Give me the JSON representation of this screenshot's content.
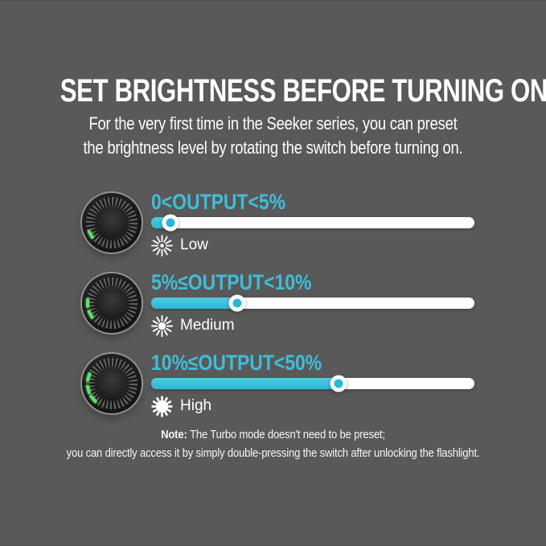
{
  "page": {
    "background_color": "#595959",
    "accent_cyan": "#3fbed8",
    "knob_indicator_green": "#5fe06a"
  },
  "header": {
    "title": "SET BRIGHTNESS BEFORE TURNING ON",
    "subtitle_line1": "For the very first time in the Seeker series, you can preset",
    "subtitle_line2": "the brightness level by rotating the switch before turning on."
  },
  "rows": [
    {
      "range_label": "0<OUTPUT<5%",
      "level_label": "Low",
      "icon": "brightness-low-icon",
      "slider_percent": 6,
      "knob_tick_angles": [
        151
      ]
    },
    {
      "range_label": "5%≤OUTPUT<10%",
      "level_label": "Medium",
      "icon": "brightness-medium-icon",
      "slider_percent": 26.5,
      "knob_tick_angles": [
        180,
        152
      ]
    },
    {
      "range_label": "10%≤OUTPUT<50%",
      "level_label": "High",
      "icon": "brightness-high-icon",
      "slider_percent": 58,
      "knob_tick_angles": [
        196,
        166,
        140
      ]
    }
  ],
  "note": {
    "label": "Note:",
    "line1": "The Turbo mode doesn't need to be preset;",
    "line2": "you can directly access it by simply double-pressing the switch after unlocking the flashlight."
  }
}
